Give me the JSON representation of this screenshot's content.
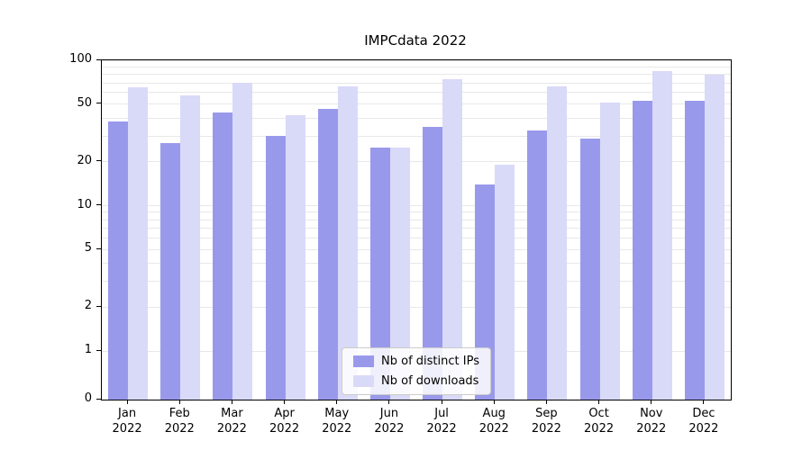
{
  "chart_data": {
    "type": "bar",
    "title": "IMPCdata 2022",
    "categories": [
      "Jan",
      "Feb",
      "Mar",
      "Apr",
      "May",
      "Jun",
      "Jul",
      "Aug",
      "Sep",
      "Oct",
      "Nov",
      "Dec"
    ],
    "year_label": "2022",
    "series": [
      {
        "name": "Nb of distinct IPs",
        "color": "#9999ec",
        "values": [
          38,
          27,
          44,
          30,
          46,
          25,
          35,
          14,
          33,
          29,
          53,
          53
        ]
      },
      {
        "name": "Nb of downloads",
        "color": "#d9d9f8",
        "values": [
          65,
          57,
          70,
          42,
          66,
          25,
          74,
          19,
          66,
          51,
          84,
          80
        ]
      }
    ],
    "yscale": "symlog",
    "ylim": [
      0,
      100
    ],
    "yticks": [
      100,
      50,
      20,
      10,
      5,
      2,
      1,
      0
    ],
    "grid_values": [
      1,
      2,
      3,
      4,
      5,
      6,
      7,
      8,
      9,
      10,
      20,
      30,
      40,
      50,
      60,
      70,
      80,
      90,
      100
    ],
    "grid": "on",
    "legend_position": "lower center",
    "colors": {
      "grid": "#e8e8e8",
      "axis": "#000000",
      "background": "#ffffff"
    }
  }
}
